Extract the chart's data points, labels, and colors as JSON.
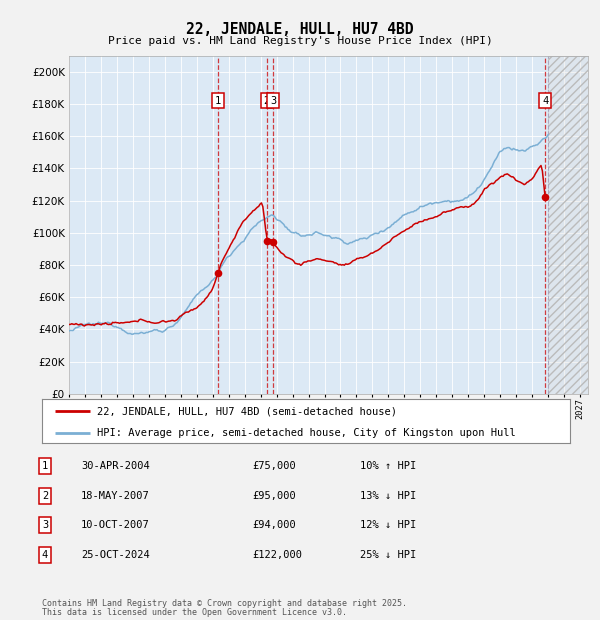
{
  "title": "22, JENDALE, HULL, HU7 4BD",
  "subtitle": "Price paid vs. HM Land Registry's House Price Index (HPI)",
  "fig_bg": "#f2f2f2",
  "plot_bg": "#dce9f5",
  "hpi_color": "#7bafd4",
  "price_color": "#cc0000",
  "transactions": [
    {
      "num": 1,
      "date": "30-APR-2004",
      "date_x": 2004.33,
      "price": 75000,
      "hpi_pct": "10% ↑ HPI"
    },
    {
      "num": 2,
      "date": "18-MAY-2007",
      "date_x": 2007.38,
      "price": 95000,
      "hpi_pct": "13% ↓ HPI"
    },
    {
      "num": 3,
      "date": "10-OCT-2007",
      "date_x": 2007.78,
      "price": 94000,
      "hpi_pct": "12% ↓ HPI"
    },
    {
      "num": 4,
      "date": "25-OCT-2024",
      "date_x": 2024.82,
      "price": 122000,
      "hpi_pct": "25% ↓ HPI"
    }
  ],
  "ylim": [
    0,
    210000
  ],
  "yticks": [
    0,
    20000,
    40000,
    60000,
    80000,
    100000,
    120000,
    140000,
    160000,
    180000,
    200000
  ],
  "xlim": [
    1995.0,
    2027.5
  ],
  "legend_line1": "22, JENDALE, HULL, HU7 4BD (semi-detached house)",
  "legend_line2": "HPI: Average price, semi-detached house, City of Kingston upon Hull",
  "footer1": "Contains HM Land Registry data © Crown copyright and database right 2025.",
  "footer2": "This data is licensed under the Open Government Licence v3.0.",
  "future_start": 2025.0,
  "hpi_anchors": [
    [
      1995.0,
      39000
    ],
    [
      1995.5,
      40000
    ],
    [
      1996.0,
      41000
    ],
    [
      1997.0,
      40500
    ],
    [
      1998.0,
      40000
    ],
    [
      1999.0,
      38500
    ],
    [
      1999.5,
      38000
    ],
    [
      2000.0,
      39000
    ],
    [
      2001.0,
      41000
    ],
    [
      2001.5,
      44000
    ],
    [
      2002.0,
      49000
    ],
    [
      2002.5,
      55000
    ],
    [
      2003.0,
      60000
    ],
    [
      2003.5,
      65000
    ],
    [
      2004.0,
      70000
    ],
    [
      2004.33,
      72000
    ],
    [
      2004.5,
      78000
    ],
    [
      2005.0,
      86000
    ],
    [
      2005.5,
      92000
    ],
    [
      2006.0,
      98000
    ],
    [
      2006.5,
      104000
    ],
    [
      2007.0,
      108000
    ],
    [
      2007.38,
      110000
    ],
    [
      2007.78,
      112000
    ],
    [
      2008.0,
      110000
    ],
    [
      2008.5,
      106000
    ],
    [
      2009.0,
      100000
    ],
    [
      2009.5,
      97000
    ],
    [
      2010.0,
      99000
    ],
    [
      2010.5,
      100000
    ],
    [
      2011.0,
      99000
    ],
    [
      2011.5,
      97000
    ],
    [
      2012.0,
      96000
    ],
    [
      2012.5,
      95000
    ],
    [
      2013.0,
      96000
    ],
    [
      2013.5,
      97000
    ],
    [
      2014.0,
      99000
    ],
    [
      2014.5,
      102000
    ],
    [
      2015.0,
      106000
    ],
    [
      2015.5,
      110000
    ],
    [
      2016.0,
      114000
    ],
    [
      2016.5,
      117000
    ],
    [
      2017.0,
      120000
    ],
    [
      2017.5,
      122000
    ],
    [
      2018.0,
      124000
    ],
    [
      2018.5,
      126000
    ],
    [
      2019.0,
      127000
    ],
    [
      2019.5,
      128000
    ],
    [
      2020.0,
      129000
    ],
    [
      2020.5,
      133000
    ],
    [
      2021.0,
      140000
    ],
    [
      2021.5,
      148000
    ],
    [
      2022.0,
      155000
    ],
    [
      2022.5,
      158000
    ],
    [
      2023.0,
      157000
    ],
    [
      2023.5,
      156000
    ],
    [
      2024.0,
      158000
    ],
    [
      2024.5,
      161000
    ],
    [
      2024.82,
      163000
    ],
    [
      2025.0,
      165000
    ]
  ],
  "price_anchors": [
    [
      1995.0,
      43000
    ],
    [
      1996.0,
      43500
    ],
    [
      1997.0,
      44000
    ],
    [
      1998.0,
      43000
    ],
    [
      1999.0,
      42000
    ],
    [
      2000.0,
      42500
    ],
    [
      2001.0,
      43000
    ],
    [
      2001.5,
      44000
    ],
    [
      2002.0,
      46000
    ],
    [
      2002.5,
      49000
    ],
    [
      2003.0,
      52000
    ],
    [
      2003.5,
      57000
    ],
    [
      2004.0,
      65000
    ],
    [
      2004.33,
      75000
    ],
    [
      2004.5,
      80000
    ],
    [
      2005.0,
      90000
    ],
    [
      2005.5,
      100000
    ],
    [
      2006.0,
      108000
    ],
    [
      2006.5,
      114000
    ],
    [
      2007.1,
      118000
    ],
    [
      2007.38,
      95000
    ],
    [
      2007.5,
      95000
    ],
    [
      2007.78,
      94000
    ],
    [
      2008.0,
      90000
    ],
    [
      2008.5,
      85000
    ],
    [
      2009.0,
      82000
    ],
    [
      2009.5,
      80000
    ],
    [
      2010.0,
      82000
    ],
    [
      2010.5,
      83000
    ],
    [
      2011.0,
      83000
    ],
    [
      2011.5,
      82000
    ],
    [
      2012.0,
      80000
    ],
    [
      2012.5,
      80000
    ],
    [
      2013.0,
      81000
    ],
    [
      2013.5,
      83000
    ],
    [
      2014.0,
      86000
    ],
    [
      2014.5,
      89000
    ],
    [
      2015.0,
      93000
    ],
    [
      2015.5,
      97000
    ],
    [
      2016.0,
      100000
    ],
    [
      2016.5,
      103000
    ],
    [
      2017.0,
      106000
    ],
    [
      2017.5,
      108000
    ],
    [
      2018.0,
      110000
    ],
    [
      2018.5,
      112000
    ],
    [
      2019.0,
      113000
    ],
    [
      2019.5,
      114000
    ],
    [
      2020.0,
      115000
    ],
    [
      2020.5,
      119000
    ],
    [
      2021.0,
      126000
    ],
    [
      2021.5,
      130000
    ],
    [
      2022.0,
      134000
    ],
    [
      2022.5,
      136000
    ],
    [
      2023.0,
      132000
    ],
    [
      2023.5,
      130000
    ],
    [
      2024.0,
      133000
    ],
    [
      2024.3,
      138000
    ],
    [
      2024.6,
      143000
    ],
    [
      2024.82,
      122000
    ]
  ]
}
